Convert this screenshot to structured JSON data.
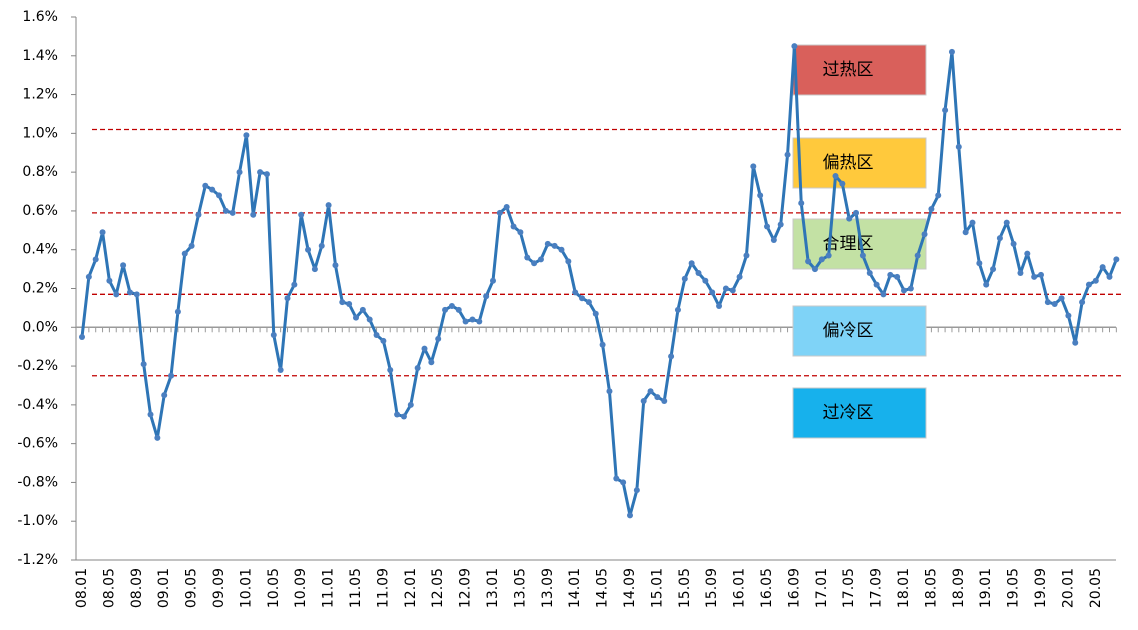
{
  "chart_data": {
    "type": "line",
    "categories": [
      "08.01",
      null,
      null,
      null,
      "08.05",
      null,
      null,
      null,
      "08.09",
      null,
      null,
      null,
      "09.01",
      null,
      null,
      null,
      "09.05",
      null,
      null,
      null,
      "09.09",
      null,
      null,
      null,
      "10.01",
      null,
      null,
      null,
      "10.05",
      null,
      null,
      null,
      "10.09",
      null,
      null,
      null,
      "11.01",
      null,
      null,
      null,
      "11.05",
      null,
      null,
      null,
      "11.09",
      null,
      null,
      null,
      "12.01",
      null,
      null,
      null,
      "12.05",
      null,
      null,
      null,
      "12.09",
      null,
      null,
      null,
      "13.01",
      null,
      null,
      null,
      "13.05",
      null,
      null,
      null,
      "13.09",
      null,
      null,
      null,
      "14.01",
      null,
      null,
      null,
      "14.05",
      null,
      null,
      null,
      "14.09",
      null,
      null,
      null,
      "15.01",
      null,
      null,
      null,
      "15.05",
      null,
      null,
      null,
      "15.09",
      null,
      null,
      null,
      "16.01",
      null,
      null,
      null,
      "16.05",
      null,
      null,
      null,
      "16.09",
      null,
      null,
      null,
      "17.01",
      null,
      null,
      null,
      "17.05",
      null,
      null,
      null,
      "17.09",
      null,
      null,
      null,
      "18.01",
      null,
      null,
      null,
      "18.05",
      null,
      null,
      null,
      "18.09",
      null,
      null,
      null,
      "19.01",
      null,
      null,
      null,
      "19.05",
      null,
      null,
      null,
      "19.09",
      null,
      null,
      null,
      "20.01",
      null,
      null,
      null,
      "20.05",
      null,
      null,
      null
    ],
    "series": [
      {
        "color": "#2e75b6",
        "values": [
          -0.05,
          0.26,
          0.35,
          0.49,
          0.24,
          0.17,
          0.32,
          0.18,
          0.17,
          -0.19,
          -0.45,
          -0.57,
          -0.35,
          -0.25,
          0.08,
          0.38,
          0.42,
          0.58,
          0.73,
          0.71,
          0.68,
          0.6,
          0.59,
          0.8,
          0.99,
          0.58,
          0.8,
          0.79,
          -0.04,
          -0.22,
          0.15,
          0.22,
          0.58,
          0.4,
          0.3,
          0.42,
          0.63,
          0.32,
          0.13,
          0.12,
          0.05,
          0.09,
          0.04,
          -0.04,
          -0.07,
          -0.22,
          -0.45,
          -0.46,
          -0.4,
          -0.21,
          -0.11,
          -0.18,
          -0.06,
          0.09,
          0.11,
          0.09,
          0.03,
          0.04,
          0.03,
          0.16,
          0.24,
          0.59,
          0.62,
          0.52,
          0.49,
          0.36,
          0.33,
          0.35,
          0.43,
          0.42,
          0.4,
          0.34,
          0.18,
          0.15,
          0.13,
          0.07,
          -0.09,
          -0.33,
          -0.78,
          -0.8,
          -0.97,
          -0.84,
          -0.38,
          -0.33,
          -0.36,
          -0.38,
          -0.15,
          0.09,
          0.25,
          0.33,
          0.28,
          0.24,
          0.18,
          0.11,
          0.2,
          0.19,
          0.26,
          0.37,
          0.83,
          0.68,
          0.52,
          0.45,
          0.53,
          0.89,
          1.45,
          0.64,
          0.34,
          0.3,
          0.35,
          0.37,
          0.78,
          0.74,
          0.56,
          0.59,
          0.37,
          0.28,
          0.22,
          0.17,
          0.27,
          0.26,
          0.19,
          0.2,
          0.37,
          0.48,
          0.61,
          0.68,
          1.12,
          1.42,
          0.93,
          0.49,
          0.54,
          0.33,
          0.22,
          0.3,
          0.46,
          0.54,
          0.43,
          0.28,
          0.38,
          0.26,
          0.27,
          0.13,
          0.12,
          0.15,
          0.06,
          -0.08,
          0.13,
          0.22,
          0.24,
          0.31,
          0.26,
          0.35
        ]
      }
    ],
    "ylim": [
      -1.2,
      1.6
    ],
    "yticks": [
      {
        "value": -1.2,
        "label": "-1.2%"
      },
      {
        "value": -1.0,
        "label": "-1.0%"
      },
      {
        "value": -0.8,
        "label": "-0.8%"
      },
      {
        "value": -0.6,
        "label": "-0.6%"
      },
      {
        "value": -0.4,
        "label": "-0.4%"
      },
      {
        "value": -0.2,
        "label": "-0.2%"
      },
      {
        "value": 0,
        "label": "0.0%"
      },
      {
        "value": 0.2,
        "label": "0.2%"
      },
      {
        "value": 0.4,
        "label": "0.4%"
      },
      {
        "value": 0.6,
        "label": "0.6%"
      },
      {
        "value": 0.8,
        "label": "0.8%"
      },
      {
        "value": 1.0,
        "label": "1.0%"
      },
      {
        "value": 1.2,
        "label": "1.2%"
      },
      {
        "value": 1.4,
        "label": "1.4%"
      },
      {
        "value": 1.6,
        "label": "1.6%"
      }
    ],
    "reference_lines": {
      "color": "#c00000",
      "values": [
        1.02,
        0.59,
        0.17,
        -0.25
      ]
    },
    "zones": [
      {
        "label": "过热区",
        "color": "#d9605b"
      },
      {
        "label": "偏热区",
        "color": "#ffc93c"
      },
      {
        "label": "合理区",
        "color": "#b9dc94"
      },
      {
        "label": "偏冷区",
        "color": "#7fd3f7"
      },
      {
        "label": "过冷区",
        "color": "#17b1ec"
      }
    ]
  }
}
